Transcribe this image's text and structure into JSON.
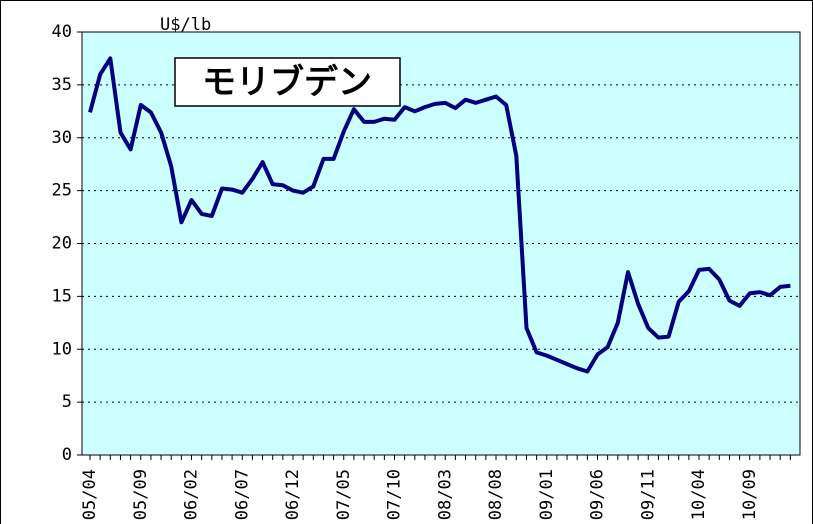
{
  "chart_data": {
    "type": "line",
    "title": "モリブデン",
    "y_label": "U$/lb",
    "categories": [
      "05/04",
      null,
      null,
      null,
      null,
      "05/09",
      null,
      null,
      null,
      null,
      "06/02",
      null,
      null,
      null,
      null,
      "06/07",
      null,
      null,
      null,
      null,
      "06/12",
      null,
      null,
      null,
      null,
      "07/05",
      null,
      null,
      null,
      null,
      "07/10",
      null,
      null,
      null,
      null,
      "08/03",
      null,
      null,
      null,
      null,
      "08/08",
      null,
      null,
      null,
      null,
      "09/01",
      null,
      null,
      null,
      null,
      "09/06",
      null,
      null,
      null,
      null,
      "09/11",
      null,
      null,
      null,
      null,
      "10/04",
      null,
      null,
      null,
      null,
      "10/09",
      null,
      null,
      null,
      null
    ],
    "values": [
      32.4,
      36,
      37.5,
      30.5,
      28.9,
      33.1,
      32.4,
      30.5,
      27.3,
      22,
      24.1,
      22.8,
      22.6,
      25.2,
      25.1,
      24.8,
      26.1,
      27.7,
      25.6,
      25.5,
      25,
      24.8,
      25.4,
      28,
      28,
      30.6,
      32.7,
      31.5,
      31.5,
      31.8,
      31.7,
      32.9,
      32.5,
      32.9,
      33.2,
      33.3,
      32.8,
      33.6,
      33.3,
      33.6,
      33.9,
      33.1,
      28.3,
      12,
      9.7,
      9.4,
      9,
      8.6,
      8.2,
      7.9,
      9.5,
      10.2,
      12.5,
      17.3,
      14.3,
      12,
      11.1,
      11.2,
      14.5,
      15.5,
      17.5,
      17.6,
      16.6,
      14.6,
      14.1,
      15.3,
      15.4,
      15.1,
      15.9,
      16
    ],
    "color": "#000080",
    "background": "#ccffff",
    "ylim": [
      0,
      40
    ],
    "yticks": [
      0,
      5,
      10,
      15,
      20,
      25,
      30,
      35,
      40
    ],
    "grid": true
  }
}
